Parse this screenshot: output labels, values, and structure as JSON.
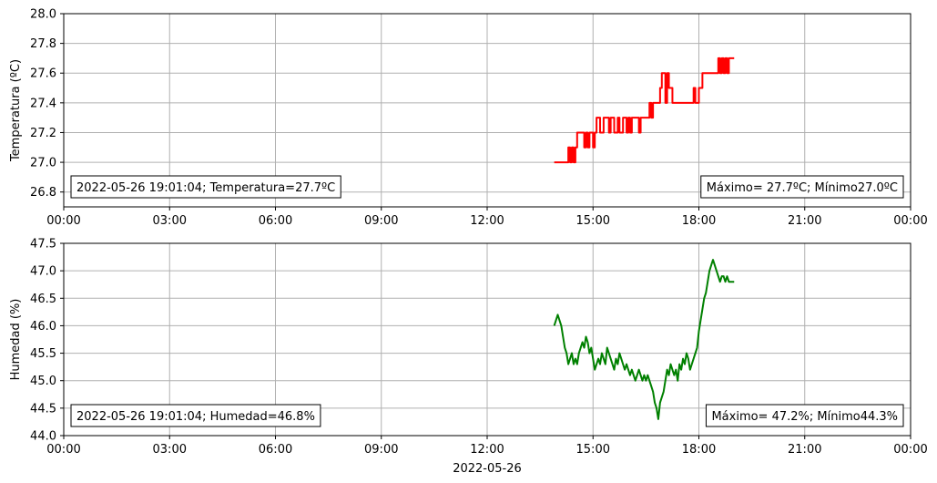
{
  "chart_data": [
    {
      "type": "line",
      "ylabel": "Temperatura (ºC)",
      "xlabel": "",
      "ylim": [
        26.7,
        28.0
      ],
      "yticks": [
        "26.8",
        "27.0",
        "27.2",
        "27.4",
        "27.6",
        "27.8",
        "28.0"
      ],
      "xticks": [
        "00:00",
        "03:00",
        "06:00",
        "09:00",
        "12:00",
        "15:00",
        "18:00",
        "21:00",
        "00:00"
      ],
      "xlim_hours": [
        0,
        24
      ],
      "grid": true,
      "color": "#ff0000",
      "series": [
        {
          "x_hours": [
            13.9,
            14.3,
            14.3,
            14.35,
            14.35,
            14.4,
            14.4,
            14.45,
            14.45,
            14.5,
            14.5,
            14.55,
            14.55,
            14.75,
            14.75,
            14.8,
            14.8,
            14.85,
            14.85,
            14.9,
            14.9,
            15.0,
            15.0,
            15.05,
            15.05,
            15.1,
            15.1,
            15.2,
            15.2,
            15.3,
            15.3,
            15.45,
            15.45,
            15.5,
            15.5,
            15.6,
            15.6,
            15.7,
            15.7,
            15.75,
            15.75,
            15.85,
            15.85,
            15.95,
            15.95,
            16.0,
            16.0,
            16.05,
            16.05,
            16.1,
            16.1,
            16.2,
            16.2,
            16.3,
            16.3,
            16.35,
            16.35,
            16.4,
            16.4,
            16.5,
            16.5,
            16.6,
            16.6,
            16.65,
            16.65,
            16.7,
            16.7,
            16.9,
            16.9,
            16.95,
            16.95,
            17.05,
            17.05,
            17.1,
            17.1,
            17.15,
            17.15,
            17.2,
            17.2,
            17.25,
            17.25,
            17.3,
            17.3,
            17.85,
            17.85,
            17.9,
            17.9,
            18.0,
            18.0,
            18.1,
            18.1,
            18.15,
            18.15,
            18.3,
            18.3,
            18.55,
            18.55,
            18.6,
            18.6,
            18.65,
            18.65,
            18.7,
            18.7,
            18.75,
            18.75,
            18.8,
            18.8,
            18.85,
            18.85,
            19.0
          ],
          "y": [
            27.0,
            27.0,
            27.1,
            27.1,
            27.0,
            27.0,
            27.1,
            27.1,
            27.0,
            27.0,
            27.1,
            27.1,
            27.2,
            27.2,
            27.1,
            27.1,
            27.2,
            27.2,
            27.1,
            27.1,
            27.2,
            27.2,
            27.1,
            27.1,
            27.2,
            27.2,
            27.3,
            27.3,
            27.2,
            27.2,
            27.3,
            27.3,
            27.2,
            27.2,
            27.3,
            27.3,
            27.2,
            27.2,
            27.3,
            27.3,
            27.2,
            27.2,
            27.3,
            27.3,
            27.2,
            27.2,
            27.3,
            27.3,
            27.2,
            27.2,
            27.3,
            27.3,
            27.3,
            27.3,
            27.2,
            27.2,
            27.3,
            27.3,
            27.3,
            27.3,
            27.3,
            27.3,
            27.4,
            27.4,
            27.3,
            27.3,
            27.4,
            27.4,
            27.5,
            27.5,
            27.6,
            27.6,
            27.4,
            27.4,
            27.6,
            27.6,
            27.5,
            27.5,
            27.5,
            27.5,
            27.4,
            27.4,
            27.4,
            27.4,
            27.5,
            27.5,
            27.4,
            27.4,
            27.5,
            27.5,
            27.6,
            27.6,
            27.6,
            27.6,
            27.6,
            27.6,
            27.7,
            27.7,
            27.6,
            27.6,
            27.7,
            27.7,
            27.6,
            27.6,
            27.7,
            27.7,
            27.6,
            27.6,
            27.7,
            27.7
          ]
        }
      ],
      "annotation_left": "2022-05-26 19:01:04; Temperatura=27.7ºC",
      "annotation_right": "Máximo= 27.7ºC; Mínimo27.0ºC"
    },
    {
      "type": "line",
      "ylabel": "Humedad (%)",
      "xlabel": "2022-05-26",
      "ylim": [
        44.0,
        47.5
      ],
      "yticks": [
        "44.0",
        "44.5",
        "45.0",
        "45.5",
        "46.0",
        "46.5",
        "47.0",
        "47.5"
      ],
      "xticks": [
        "00:00",
        "03:00",
        "06:00",
        "09:00",
        "12:00",
        "15:00",
        "18:00",
        "21:00",
        "00:00"
      ],
      "xlim_hours": [
        0,
        24
      ],
      "grid": true,
      "color": "#008000",
      "series": [
        {
          "x_hours": [
            13.9,
            13.95,
            14.0,
            14.05,
            14.1,
            14.15,
            14.2,
            14.25,
            14.3,
            14.35,
            14.4,
            14.45,
            14.5,
            14.55,
            14.6,
            14.65,
            14.7,
            14.75,
            14.8,
            14.85,
            14.9,
            14.95,
            15.0,
            15.05,
            15.1,
            15.15,
            15.2,
            15.25,
            15.3,
            15.35,
            15.4,
            15.45,
            15.5,
            15.55,
            15.6,
            15.65,
            15.7,
            15.75,
            15.8,
            15.85,
            15.9,
            15.95,
            16.0,
            16.05,
            16.1,
            16.15,
            16.2,
            16.25,
            16.3,
            16.35,
            16.4,
            16.45,
            16.5,
            16.55,
            16.6,
            16.65,
            16.7,
            16.75,
            16.8,
            16.85,
            16.9,
            16.95,
            17.0,
            17.05,
            17.1,
            17.15,
            17.2,
            17.25,
            17.3,
            17.35,
            17.4,
            17.45,
            17.5,
            17.55,
            17.6,
            17.65,
            17.7,
            17.75,
            17.8,
            17.85,
            17.9,
            17.95,
            18.0,
            18.05,
            18.1,
            18.15,
            18.2,
            18.25,
            18.3,
            18.35,
            18.4,
            18.45,
            18.5,
            18.55,
            18.6,
            18.65,
            18.7,
            18.75,
            18.8,
            18.85,
            18.9,
            18.95,
            19.0
          ],
          "y": [
            46.0,
            46.1,
            46.2,
            46.1,
            46.0,
            45.8,
            45.6,
            45.5,
            45.3,
            45.4,
            45.5,
            45.3,
            45.4,
            45.3,
            45.5,
            45.6,
            45.7,
            45.6,
            45.8,
            45.7,
            45.5,
            45.6,
            45.4,
            45.2,
            45.3,
            45.4,
            45.3,
            45.5,
            45.4,
            45.3,
            45.6,
            45.5,
            45.4,
            45.3,
            45.2,
            45.4,
            45.3,
            45.5,
            45.4,
            45.3,
            45.2,
            45.3,
            45.2,
            45.1,
            45.2,
            45.1,
            45.0,
            45.1,
            45.2,
            45.1,
            45.0,
            45.1,
            45.0,
            45.1,
            45.0,
            44.9,
            44.8,
            44.6,
            44.5,
            44.3,
            44.6,
            44.7,
            44.8,
            45.0,
            45.2,
            45.1,
            45.3,
            45.2,
            45.1,
            45.2,
            45.0,
            45.3,
            45.2,
            45.4,
            45.3,
            45.5,
            45.4,
            45.2,
            45.3,
            45.4,
            45.5,
            45.6,
            45.9,
            46.1,
            46.3,
            46.5,
            46.6,
            46.8,
            47.0,
            47.1,
            47.2,
            47.1,
            47.0,
            46.9,
            46.8,
            46.9,
            46.9,
            46.8,
            46.9,
            46.8,
            46.8,
            46.8,
            46.8
          ]
        }
      ],
      "annotation_left": "2022-05-26 19:01:04; Humedad=46.8%",
      "annotation_right": "Máximo= 47.2%; Mínimo44.3%"
    }
  ]
}
